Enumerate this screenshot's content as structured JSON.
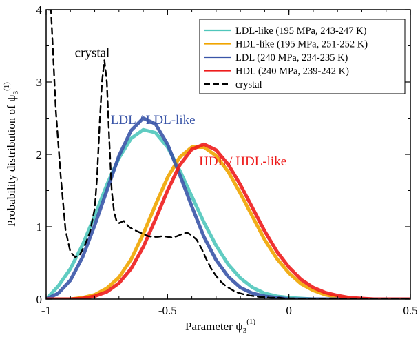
{
  "chart_data": {
    "type": "line",
    "xlabel": "Parameter ψ",
    "xlabel_sub": "3",
    "xlabel_sup": "(1)",
    "ylabel": "Probability distribution of ψ",
    "ylabel_sub": "3",
    "ylabel_sup": "(1)",
    "xlim": [
      -1,
      0.5
    ],
    "ylim": [
      0,
      4
    ],
    "xticks": [
      -1,
      -0.5,
      0,
      0.5
    ],
    "xtick_labels": [
      "-1",
      "-0.5",
      "0",
      "0.5"
    ],
    "yticks": [
      0,
      1,
      2,
      3,
      4
    ],
    "ytick_labels": [
      "0",
      "1",
      "2",
      "3",
      "4"
    ],
    "grid": false,
    "legend_position": "top-right",
    "colors": {
      "ldl_like": "#4fc6bb",
      "hdl_like": "#f0a500",
      "ldl": "#3a55a8",
      "hdl": "#ee1c1c",
      "crystal": "#000000"
    },
    "annotations": [
      {
        "text": "crystal",
        "x": -0.81,
        "y": 3.35,
        "color": "#000000"
      },
      {
        "text": "LDL / LDL-like",
        "x": -0.56,
        "y": 2.42,
        "color": "#3a55a8"
      },
      {
        "text": "HDL / HDL-like",
        "x": -0.19,
        "y": 1.85,
        "color": "#ee1c1c"
      }
    ],
    "series": [
      {
        "name": "LDL-like (195 MPa, 243-247 K)",
        "key": "ldl_like",
        "style": "solid",
        "x": [
          -1.0,
          -0.95,
          -0.9,
          -0.85,
          -0.8,
          -0.75,
          -0.7,
          -0.65,
          -0.6,
          -0.55,
          -0.5,
          -0.45,
          -0.4,
          -0.35,
          -0.3,
          -0.25,
          -0.2,
          -0.15,
          -0.1,
          -0.05,
          0.0,
          0.05,
          0.1,
          0.15,
          0.2,
          0.25,
          0.3,
          0.35,
          0.4,
          0.45,
          0.5
        ],
        "y": [
          0.0,
          0.18,
          0.42,
          0.75,
          1.15,
          1.58,
          1.95,
          2.22,
          2.34,
          2.3,
          2.1,
          1.78,
          1.42,
          1.06,
          0.74,
          0.48,
          0.29,
          0.16,
          0.08,
          0.04,
          0.02,
          0.01,
          0.0,
          0.0,
          0.0,
          0.0,
          0.0,
          0.0,
          0.0,
          0.0,
          0.0
        ]
      },
      {
        "name": "HDL-like (195 MPa, 251-252 K)",
        "key": "hdl_like",
        "style": "solid",
        "x": [
          -1.0,
          -0.95,
          -0.9,
          -0.85,
          -0.8,
          -0.75,
          -0.7,
          -0.65,
          -0.6,
          -0.55,
          -0.5,
          -0.45,
          -0.4,
          -0.35,
          -0.3,
          -0.25,
          -0.2,
          -0.15,
          -0.1,
          -0.05,
          0.0,
          0.05,
          0.1,
          0.15,
          0.2,
          0.25,
          0.3,
          0.35,
          0.4,
          0.45,
          0.5
        ],
        "y": [
          0.0,
          0.0,
          0.0,
          0.02,
          0.06,
          0.15,
          0.3,
          0.55,
          0.9,
          1.3,
          1.68,
          1.96,
          2.1,
          2.1,
          1.98,
          1.76,
          1.46,
          1.14,
          0.82,
          0.56,
          0.36,
          0.21,
          0.12,
          0.06,
          0.03,
          0.01,
          0.0,
          0.0,
          0.0,
          0.0,
          0.0
        ]
      },
      {
        "name": "LDL (240 MPa, 234-235 K)",
        "key": "ldl",
        "style": "solid",
        "x": [
          -1.0,
          -0.95,
          -0.9,
          -0.85,
          -0.8,
          -0.75,
          -0.7,
          -0.65,
          -0.6,
          -0.55,
          -0.5,
          -0.45,
          -0.4,
          -0.35,
          -0.3,
          -0.25,
          -0.2,
          -0.15,
          -0.1,
          -0.05,
          0.0,
          0.05,
          0.1,
          0.15,
          0.2,
          0.25,
          0.3,
          0.35,
          0.4,
          0.45,
          0.5
        ],
        "y": [
          0.0,
          0.08,
          0.26,
          0.58,
          1.02,
          1.5,
          1.98,
          2.33,
          2.5,
          2.42,
          2.14,
          1.72,
          1.28,
          0.86,
          0.54,
          0.31,
          0.16,
          0.08,
          0.04,
          0.02,
          0.0,
          0.0,
          0.0,
          0.0,
          0.0,
          0.0,
          0.0,
          0.0,
          0.0,
          0.0,
          0.0
        ]
      },
      {
        "name": "HDL (240 MPa, 239-242 K)",
        "key": "hdl",
        "style": "solid",
        "x": [
          -1.0,
          -0.95,
          -0.9,
          -0.85,
          -0.8,
          -0.75,
          -0.7,
          -0.65,
          -0.6,
          -0.55,
          -0.5,
          -0.45,
          -0.4,
          -0.35,
          -0.3,
          -0.25,
          -0.2,
          -0.15,
          -0.1,
          -0.05,
          0.0,
          0.05,
          0.1,
          0.15,
          0.2,
          0.25,
          0.3,
          0.35,
          0.4,
          0.45,
          0.5
        ],
        "y": [
          0.0,
          0.0,
          0.0,
          0.01,
          0.04,
          0.1,
          0.22,
          0.42,
          0.72,
          1.1,
          1.5,
          1.85,
          2.07,
          2.14,
          2.06,
          1.86,
          1.58,
          1.26,
          0.94,
          0.66,
          0.44,
          0.27,
          0.16,
          0.09,
          0.05,
          0.02,
          0.01,
          0.0,
          0.0,
          0.0,
          0.0
        ]
      },
      {
        "name": "crystal",
        "key": "crystal",
        "style": "dashed",
        "x": [
          -0.99,
          -0.98,
          -0.96,
          -0.94,
          -0.92,
          -0.9,
          -0.88,
          -0.86,
          -0.84,
          -0.82,
          -0.8,
          -0.79,
          -0.78,
          -0.77,
          -0.76,
          -0.75,
          -0.74,
          -0.73,
          -0.72,
          -0.71,
          -0.7,
          -0.68,
          -0.66,
          -0.64,
          -0.62,
          -0.6,
          -0.58,
          -0.56,
          -0.54,
          -0.52,
          -0.5,
          -0.48,
          -0.46,
          -0.44,
          -0.42,
          -0.4,
          -0.38,
          -0.36,
          -0.34,
          -0.32,
          -0.3,
          -0.28,
          -0.26,
          -0.24,
          -0.22,
          -0.2,
          -0.18,
          -0.16,
          -0.14,
          -0.12,
          -0.1,
          -0.08,
          -0.06,
          -0.04,
          -0.02,
          0.0,
          0.02,
          0.04,
          0.06,
          0.1,
          0.2,
          0.3,
          0.4,
          0.5
        ],
        "y": [
          4.0,
          4.0,
          2.6,
          1.7,
          0.95,
          0.65,
          0.58,
          0.62,
          0.75,
          0.92,
          1.25,
          1.7,
          2.4,
          3.0,
          3.3,
          3.0,
          2.2,
          1.5,
          1.2,
          1.08,
          1.05,
          1.08,
          1.0,
          0.96,
          0.93,
          0.9,
          0.87,
          0.86,
          0.86,
          0.87,
          0.86,
          0.85,
          0.87,
          0.9,
          0.92,
          0.88,
          0.82,
          0.7,
          0.55,
          0.42,
          0.32,
          0.24,
          0.18,
          0.14,
          0.1,
          0.08,
          0.06,
          0.05,
          0.04,
          0.03,
          0.03,
          0.02,
          0.02,
          0.02,
          0.01,
          0.01,
          0.01,
          0.0,
          0.0,
          0.0,
          0.0,
          0.0,
          0.0,
          0.0
        ]
      }
    ]
  }
}
